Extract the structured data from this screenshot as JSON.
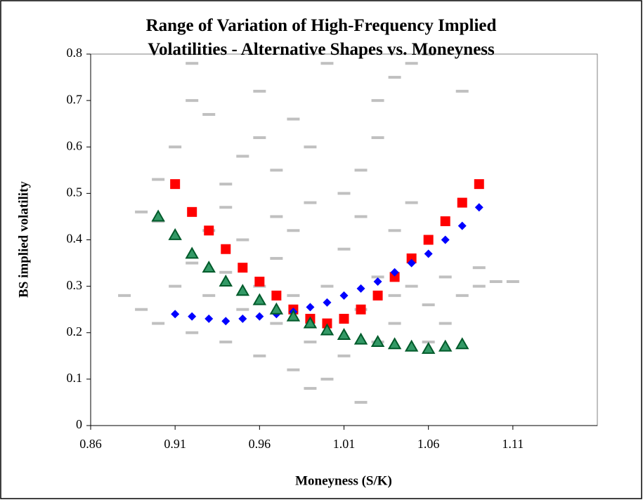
{
  "chart_data": {
    "type": "scatter",
    "title": "Range of Variation of High-Frequency Implied Volatilities - Alternative Shapes vs. Moneyness",
    "x_label": "Moneyness (S/K)",
    "y_label": "BS implied volatility",
    "xlim": [
      0.86,
      1.16
    ],
    "xticks": [
      0.86,
      0.91,
      0.96,
      1.01,
      1.06,
      1.11
    ],
    "ylim": [
      0,
      0.8
    ],
    "yticks": [
      0,
      0.1,
      0.2,
      0.3,
      0.4,
      0.5,
      0.6,
      0.7,
      0.8
    ],
    "grid": false,
    "series": [
      {
        "color": "#c0c0c0",
        "marker": "dash",
        "x": [
          0.89,
          0.9,
          0.88,
          0.89,
          0.9,
          0.91,
          0.92,
          0.92,
          0.93,
          0.93,
          0.94,
          0.94,
          0.95,
          0.95,
          0.96,
          0.96,
          0.97,
          0.97,
          0.98,
          0.98,
          0.99,
          0.99,
          1.0,
          1.0,
          1.01,
          1.01,
          1.02,
          1.02,
          1.03,
          1.03,
          1.04,
          1.04,
          1.05,
          1.06,
          1.07,
          1.08,
          1.09,
          1.1,
          1.11,
          1.02,
          1.02,
          1.03,
          1.03,
          1.04,
          1.05,
          1.06,
          1.01,
          1.0,
          0.99,
          0.97,
          0.96,
          0.95,
          0.94,
          0.93,
          0.92,
          0.91,
          0.9,
          0.92,
          0.96,
          0.98,
          0.94,
          0.97,
          0.99,
          1.08,
          1.09,
          1.04,
          1.05,
          1.07,
          1.06,
          0.98
        ],
        "values": [
          0.46,
          0.44,
          0.28,
          0.25,
          0.22,
          0.3,
          0.35,
          0.2,
          0.28,
          0.42,
          0.18,
          0.33,
          0.25,
          0.4,
          0.15,
          0.3,
          0.22,
          0.36,
          0.12,
          0.28,
          0.08,
          0.18,
          0.1,
          0.3,
          0.15,
          0.38,
          0.05,
          0.25,
          0.18,
          0.32,
          0.22,
          0.28,
          0.3,
          0.26,
          0.32,
          0.28,
          0.3,
          0.31,
          0.31,
          0.45,
          0.55,
          0.62,
          0.7,
          0.75,
          0.78,
          0.8,
          0.5,
          0.78,
          0.6,
          0.55,
          0.62,
          0.58,
          0.52,
          0.67,
          0.7,
          0.6,
          0.53,
          0.78,
          0.72,
          0.66,
          0.47,
          0.45,
          0.48,
          0.72,
          0.34,
          0.42,
          0.48,
          0.22,
          0.18,
          0.42
        ]
      },
      {
        "color": "#ff0000",
        "marker": "square",
        "x": [
          0.91,
          0.92,
          0.93,
          0.94,
          0.95,
          0.96,
          0.97,
          0.98,
          0.99,
          1.0,
          1.01,
          1.02,
          1.03,
          1.04,
          1.05,
          1.06,
          1.07,
          1.08,
          1.09
        ],
        "values": [
          0.52,
          0.46,
          0.42,
          0.38,
          0.34,
          0.31,
          0.28,
          0.25,
          0.23,
          0.22,
          0.23,
          0.25,
          0.28,
          0.32,
          0.36,
          0.4,
          0.44,
          0.48,
          0.52
        ]
      },
      {
        "color": "#0000ff",
        "marker": "diamond",
        "x": [
          0.91,
          0.92,
          0.93,
          0.94,
          0.95,
          0.96,
          0.97,
          0.98,
          0.99,
          1.0,
          1.01,
          1.02,
          1.03,
          1.04,
          1.05,
          1.06,
          1.07,
          1.08,
          1.09
        ],
        "values": [
          0.24,
          0.235,
          0.23,
          0.225,
          0.23,
          0.235,
          0.24,
          0.245,
          0.255,
          0.265,
          0.28,
          0.295,
          0.31,
          0.33,
          0.35,
          0.37,
          0.4,
          0.43,
          0.47
        ]
      },
      {
        "color": "#339966",
        "marker": "triangle",
        "x": [
          0.9,
          0.91,
          0.92,
          0.93,
          0.94,
          0.95,
          0.96,
          0.97,
          0.98,
          0.99,
          1.0,
          1.01,
          1.02,
          1.03,
          1.04,
          1.05,
          1.06,
          1.07,
          1.08
        ],
        "values": [
          0.45,
          0.41,
          0.37,
          0.34,
          0.31,
          0.29,
          0.27,
          0.25,
          0.235,
          0.22,
          0.205,
          0.195,
          0.185,
          0.18,
          0.175,
          0.17,
          0.165,
          0.17,
          0.175
        ]
      }
    ]
  }
}
